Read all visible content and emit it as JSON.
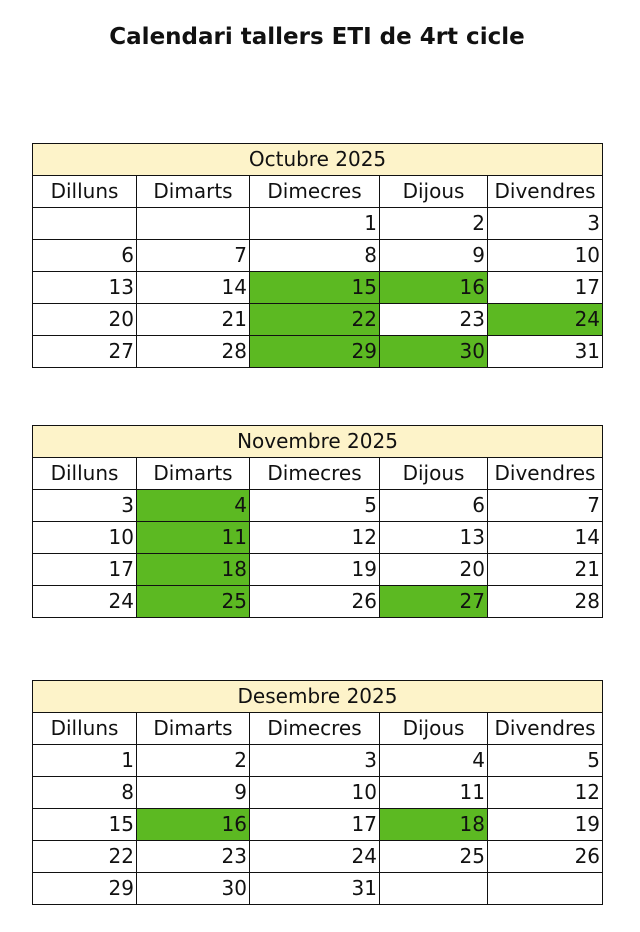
{
  "title": "Calendari tallers ETI de 4rt cicle",
  "colors": {
    "highlight": "#5cb922",
    "month_header": "#fdf3c9"
  },
  "day_names": [
    "Dilluns",
    "Dimarts",
    "Dimecres",
    "Dijous",
    "Divendres"
  ],
  "months": [
    {
      "title": "Octubre 2025",
      "rows": [
        [
          "",
          "",
          "1",
          "2",
          "3"
        ],
        [
          "6",
          "7",
          "8",
          "9",
          "10"
        ],
        [
          "13",
          "14",
          "15",
          "16",
          "17"
        ],
        [
          "20",
          "21",
          "22",
          "23",
          "24"
        ],
        [
          "27",
          "28",
          "29",
          "30",
          "31"
        ]
      ],
      "highlighted": [
        "15",
        "16",
        "22",
        "24",
        "29",
        "30"
      ]
    },
    {
      "title": "Novembre 2025",
      "rows": [
        [
          "3",
          "4",
          "5",
          "6",
          "7"
        ],
        [
          "10",
          "11",
          "12",
          "13",
          "14"
        ],
        [
          "17",
          "18",
          "19",
          "20",
          "21"
        ],
        [
          "24",
          "25",
          "26",
          "27",
          "28"
        ]
      ],
      "highlighted": [
        "4",
        "11",
        "18",
        "25",
        "27"
      ]
    },
    {
      "title": "Desembre 2025",
      "rows": [
        [
          "1",
          "2",
          "3",
          "4",
          "5"
        ],
        [
          "8",
          "9",
          "10",
          "11",
          "12"
        ],
        [
          "15",
          "16",
          "17",
          "18",
          "19"
        ],
        [
          "22",
          "23",
          "24",
          "25",
          "26"
        ],
        [
          "29",
          "30",
          "31",
          "",
          ""
        ]
      ],
      "highlighted": [
        "16",
        "18"
      ]
    }
  ]
}
